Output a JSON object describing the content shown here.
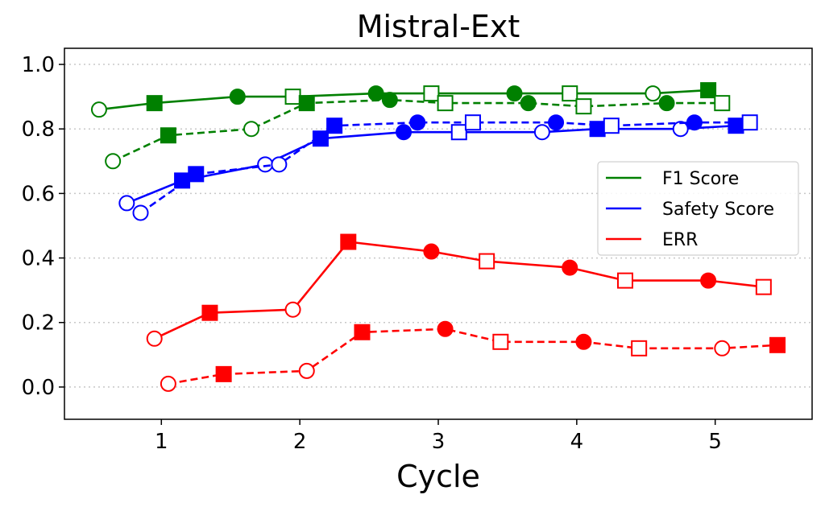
{
  "chart_data": {
    "type": "line",
    "title": "Mistral-Ext",
    "xlabel": "Cycle",
    "ylabel": "",
    "xlim": [
      0.3,
      5.7
    ],
    "ylim": [
      -0.1,
      1.05
    ],
    "xticks": [
      1,
      2,
      3,
      4,
      5
    ],
    "yticks": [
      0.0,
      0.2,
      0.4,
      0.6,
      0.8,
      1.0
    ],
    "xtick_labels": [
      "1",
      "2",
      "3",
      "4",
      "5"
    ],
    "ytick_labels": [
      "0.0",
      "0.2",
      "0.4",
      "0.6",
      "0.8",
      "1.0"
    ],
    "grid": "horizontal dotted",
    "legend_position": "center-right",
    "legend": [
      {
        "label": "F1 Score",
        "color": "#008000"
      },
      {
        "label": "Safety Score",
        "color": "#0000ff"
      },
      {
        "label": "ERR",
        "color": "#ff0000"
      }
    ],
    "series": [
      {
        "metric": "F1 Score",
        "color": "#008000",
        "style": "solid",
        "points": [
          {
            "x": 0.55,
            "y": 0.86,
            "marker": "circle",
            "filled": false
          },
          {
            "x": 0.95,
            "y": 0.88,
            "marker": "square",
            "filled": true
          },
          {
            "x": 1.55,
            "y": 0.9,
            "marker": "circle",
            "filled": true
          },
          {
            "x": 1.95,
            "y": 0.9,
            "marker": "square",
            "filled": false
          },
          {
            "x": 2.55,
            "y": 0.91,
            "marker": "circle",
            "filled": true
          },
          {
            "x": 2.95,
            "y": 0.91,
            "marker": "square",
            "filled": false
          },
          {
            "x": 3.55,
            "y": 0.91,
            "marker": "circle",
            "filled": true
          },
          {
            "x": 3.95,
            "y": 0.91,
            "marker": "square",
            "filled": false
          },
          {
            "x": 4.55,
            "y": 0.91,
            "marker": "circle",
            "filled": false
          },
          {
            "x": 4.95,
            "y": 0.92,
            "marker": "square",
            "filled": true
          }
        ]
      },
      {
        "metric": "F1 Score",
        "color": "#008000",
        "style": "dashed",
        "points": [
          {
            "x": 0.65,
            "y": 0.7,
            "marker": "circle",
            "filled": false
          },
          {
            "x": 1.05,
            "y": 0.78,
            "marker": "square",
            "filled": true
          },
          {
            "x": 1.65,
            "y": 0.8,
            "marker": "circle",
            "filled": false
          },
          {
            "x": 2.05,
            "y": 0.88,
            "marker": "square",
            "filled": true
          },
          {
            "x": 2.65,
            "y": 0.89,
            "marker": "circle",
            "filled": true
          },
          {
            "x": 3.05,
            "y": 0.88,
            "marker": "square",
            "filled": false
          },
          {
            "x": 3.65,
            "y": 0.88,
            "marker": "circle",
            "filled": true
          },
          {
            "x": 4.05,
            "y": 0.87,
            "marker": "square",
            "filled": false
          },
          {
            "x": 4.65,
            "y": 0.88,
            "marker": "circle",
            "filled": true
          },
          {
            "x": 5.05,
            "y": 0.88,
            "marker": "square",
            "filled": false
          }
        ]
      },
      {
        "metric": "Safety Score",
        "color": "#0000ff",
        "style": "solid",
        "points": [
          {
            "x": 0.75,
            "y": 0.57,
            "marker": "circle",
            "filled": false
          },
          {
            "x": 1.15,
            "y": 0.64,
            "marker": "square",
            "filled": true
          },
          {
            "x": 1.75,
            "y": 0.69,
            "marker": "circle",
            "filled": false
          },
          {
            "x": 2.15,
            "y": 0.77,
            "marker": "square",
            "filled": true
          },
          {
            "x": 2.75,
            "y": 0.79,
            "marker": "circle",
            "filled": true
          },
          {
            "x": 3.15,
            "y": 0.79,
            "marker": "square",
            "filled": false
          },
          {
            "x": 3.75,
            "y": 0.79,
            "marker": "circle",
            "filled": false
          },
          {
            "x": 4.15,
            "y": 0.8,
            "marker": "square",
            "filled": true
          },
          {
            "x": 4.75,
            "y": 0.8,
            "marker": "circle",
            "filled": false
          },
          {
            "x": 5.15,
            "y": 0.81,
            "marker": "square",
            "filled": true
          }
        ]
      },
      {
        "metric": "Safety Score",
        "color": "#0000ff",
        "style": "dashed",
        "points": [
          {
            "x": 0.85,
            "y": 0.54,
            "marker": "circle",
            "filled": false
          },
          {
            "x": 1.25,
            "y": 0.66,
            "marker": "square",
            "filled": true
          },
          {
            "x": 1.85,
            "y": 0.69,
            "marker": "circle",
            "filled": false
          },
          {
            "x": 2.25,
            "y": 0.81,
            "marker": "square",
            "filled": true
          },
          {
            "x": 2.85,
            "y": 0.82,
            "marker": "circle",
            "filled": true
          },
          {
            "x": 3.25,
            "y": 0.82,
            "marker": "square",
            "filled": false
          },
          {
            "x": 3.85,
            "y": 0.82,
            "marker": "circle",
            "filled": true
          },
          {
            "x": 4.25,
            "y": 0.81,
            "marker": "square",
            "filled": false
          },
          {
            "x": 4.85,
            "y": 0.82,
            "marker": "circle",
            "filled": true
          },
          {
            "x": 5.25,
            "y": 0.82,
            "marker": "square",
            "filled": false
          }
        ]
      },
      {
        "metric": "ERR",
        "color": "#ff0000",
        "style": "solid",
        "points": [
          {
            "x": 0.95,
            "y": 0.15,
            "marker": "circle",
            "filled": false
          },
          {
            "x": 1.35,
            "y": 0.23,
            "marker": "square",
            "filled": true
          },
          {
            "x": 1.95,
            "y": 0.24,
            "marker": "circle",
            "filled": false
          },
          {
            "x": 2.35,
            "y": 0.45,
            "marker": "square",
            "filled": true
          },
          {
            "x": 2.95,
            "y": 0.42,
            "marker": "circle",
            "filled": true
          },
          {
            "x": 3.35,
            "y": 0.39,
            "marker": "square",
            "filled": false
          },
          {
            "x": 3.95,
            "y": 0.37,
            "marker": "circle",
            "filled": true
          },
          {
            "x": 4.35,
            "y": 0.33,
            "marker": "square",
            "filled": false
          },
          {
            "x": 4.95,
            "y": 0.33,
            "marker": "circle",
            "filled": true
          },
          {
            "x": 5.35,
            "y": 0.31,
            "marker": "square",
            "filled": false
          }
        ]
      },
      {
        "metric": "ERR",
        "color": "#ff0000",
        "style": "dashed",
        "points": [
          {
            "x": 1.05,
            "y": 0.01,
            "marker": "circle",
            "filled": false
          },
          {
            "x": 1.45,
            "y": 0.04,
            "marker": "square",
            "filled": true
          },
          {
            "x": 2.05,
            "y": 0.05,
            "marker": "circle",
            "filled": false
          },
          {
            "x": 2.45,
            "y": 0.17,
            "marker": "square",
            "filled": true
          },
          {
            "x": 3.05,
            "y": 0.18,
            "marker": "circle",
            "filled": true
          },
          {
            "x": 3.45,
            "y": 0.14,
            "marker": "square",
            "filled": false
          },
          {
            "x": 4.05,
            "y": 0.14,
            "marker": "circle",
            "filled": true
          },
          {
            "x": 4.45,
            "y": 0.12,
            "marker": "square",
            "filled": false
          },
          {
            "x": 5.05,
            "y": 0.12,
            "marker": "circle",
            "filled": false
          },
          {
            "x": 5.45,
            "y": 0.13,
            "marker": "square",
            "filled": true
          }
        ]
      }
    ]
  }
}
